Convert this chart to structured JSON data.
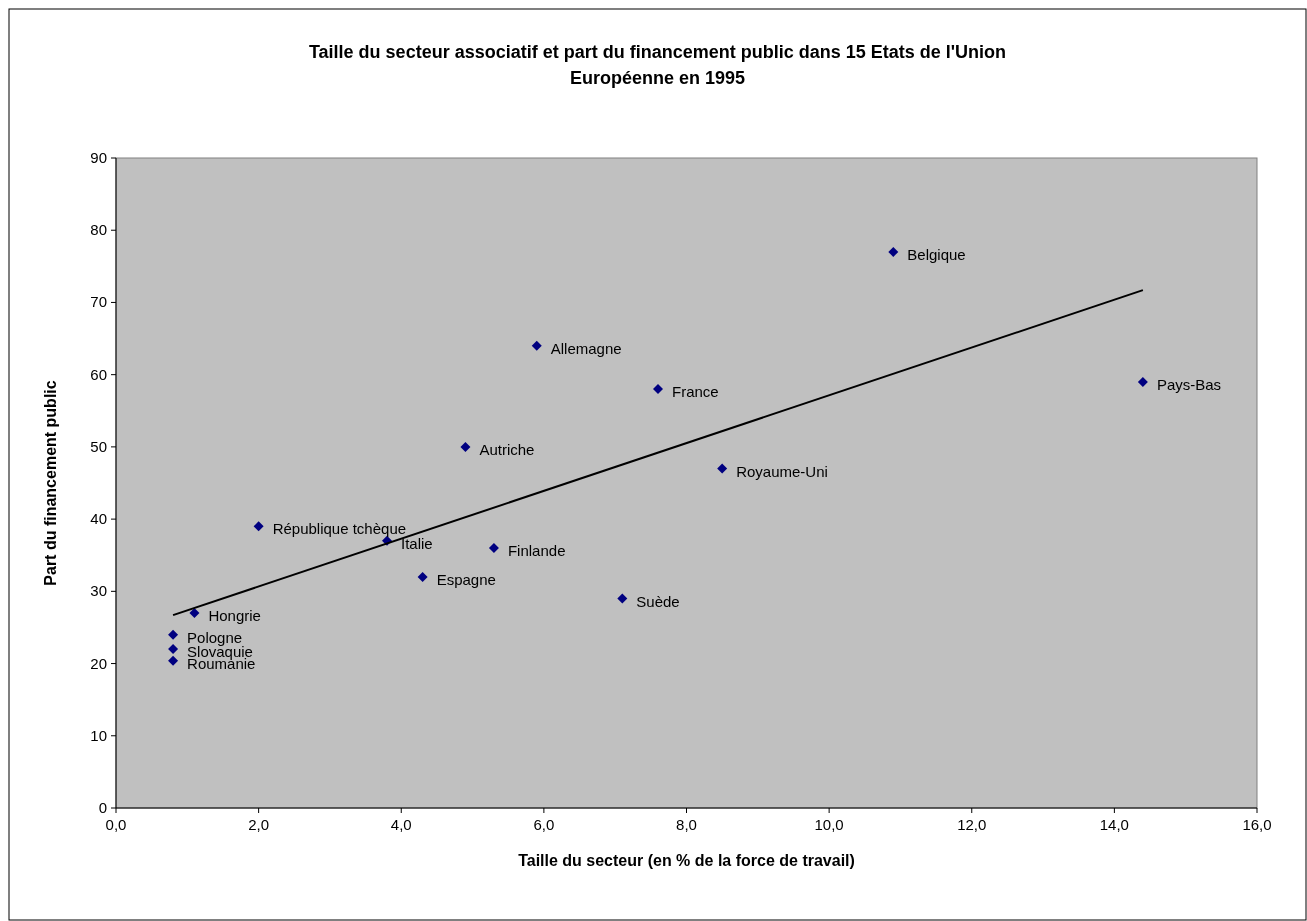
{
  "chart_data": {
    "type": "scatter",
    "title": "Taille du secteur associatif et part du financement public dans 15 Etats de l'Union Européenne en 1995",
    "xlabel": "Taille du secteur (en % de la force de travail)",
    "ylabel": "Part du financement public",
    "xlim": [
      0,
      16
    ],
    "xticks": [
      {
        "value": 0,
        "label": "0,0"
      },
      {
        "value": 2,
        "label": "2,0"
      },
      {
        "value": 4,
        "label": "4,0"
      },
      {
        "value": 6,
        "label": "6,0"
      },
      {
        "value": 8,
        "label": "8,0"
      },
      {
        "value": 10,
        "label": "10,0"
      },
      {
        "value": 12,
        "label": "12,0"
      },
      {
        "value": 14,
        "label": "14,0"
      },
      {
        "value": 16,
        "label": "16,0"
      }
    ],
    "ylim": [
      0,
      90
    ],
    "yticks": [
      0,
      10,
      20,
      30,
      40,
      50,
      60,
      70,
      80,
      90
    ],
    "grid": false,
    "series": [
      {
        "color": "#000080",
        "marker": "diamond",
        "x": [
          10.9,
          14.4,
          5.9,
          7.6,
          4.9,
          8.5,
          2.0,
          3.8,
          5.3,
          4.3,
          7.1,
          1.1,
          0.8,
          0.8,
          0.8
        ],
        "values": [
          77,
          59,
          64,
          58,
          50,
          47,
          39,
          37,
          36,
          32,
          29,
          27,
          24,
          22,
          20.4
        ]
      },
      {
        "type": "line",
        "color": "#000000",
        "marker": "none",
        "x": [
          0.8,
          14.4
        ],
        "values": [
          26.7,
          71.7
        ]
      }
    ],
    "annotations": [
      {
        "text": "Belgique",
        "x": 10.9,
        "y": 77
      },
      {
        "text": "Pays-Bas",
        "x": 14.4,
        "y": 59
      },
      {
        "text": "Allemagne",
        "x": 5.9,
        "y": 64
      },
      {
        "text": "France",
        "x": 7.6,
        "y": 58
      },
      {
        "text": "Autriche",
        "x": 4.9,
        "y": 50
      },
      {
        "text": "Royaume-Uni",
        "x": 8.5,
        "y": 47
      },
      {
        "text": "République tchèque",
        "x": 2.0,
        "y": 39
      },
      {
        "text": "Italie",
        "x": 3.8,
        "y": 37
      },
      {
        "text": "Finlande",
        "x": 5.3,
        "y": 36
      },
      {
        "text": "Espagne",
        "x": 4.3,
        "y": 32
      },
      {
        "text": "Suède",
        "x": 7.1,
        "y": 29
      },
      {
        "text": "Hongrie",
        "x": 1.1,
        "y": 27
      },
      {
        "text": "Pologne",
        "x": 0.8,
        "y": 24
      },
      {
        "text": "Slovaquie",
        "x": 0.8,
        "y": 22
      },
      {
        "text": "Roumanie",
        "x": 0.8,
        "y": 20.4
      }
    ]
  }
}
